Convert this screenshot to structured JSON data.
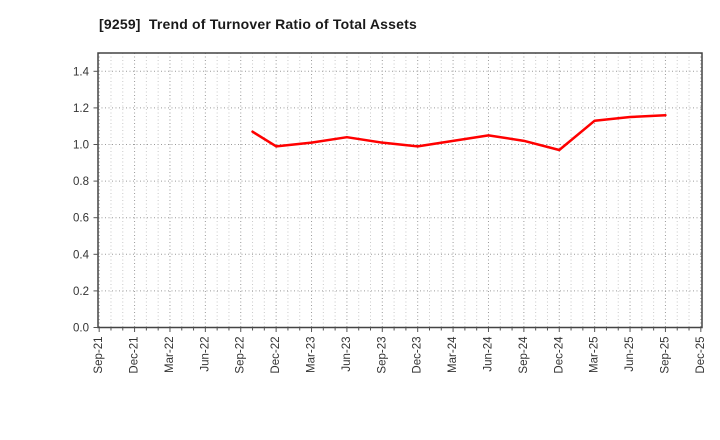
{
  "chart_data": {
    "type": "line",
    "title": "[9259]  Trend of Turnover Ratio of Total Assets",
    "xlabel": "",
    "ylabel": "",
    "ylim": [
      0,
      1.5
    ],
    "y_tick_labels": [
      "0.0",
      "0.2",
      "0.4",
      "0.6",
      "0.8",
      "1.0",
      "1.2",
      "1.4"
    ],
    "x_tick_labels": [
      "Sep-21",
      "Dec-21",
      "Mar-22",
      "Jun-22",
      "Sep-22",
      "Dec-22",
      "Mar-23",
      "Jun-23",
      "Sep-23",
      "Dec-23",
      "Mar-24",
      "Jun-24",
      "Sep-24",
      "Dec-24",
      "Mar-25",
      "Jun-25",
      "Sep-25",
      "Dec-25"
    ],
    "grid": "on",
    "legend_position": "none",
    "series": [
      {
        "name": "Turnover Ratio of Total Assets",
        "color": "#ff0000",
        "points": [
          {
            "month": "Oct-22",
            "value": 1.07
          },
          {
            "month": "Dec-22",
            "value": 0.99
          },
          {
            "month": "Mar-23",
            "value": 1.01
          },
          {
            "month": "Jun-23",
            "value": 1.04
          },
          {
            "month": "Sep-23",
            "value": 1.01
          },
          {
            "month": "Dec-23",
            "value": 0.99
          },
          {
            "month": "Mar-24",
            "value": 1.02
          },
          {
            "month": "Jun-24",
            "value": 1.05
          },
          {
            "month": "Sep-24",
            "value": 1.02
          },
          {
            "month": "Dec-24",
            "value": 0.97
          },
          {
            "month": "Mar-25",
            "value": 1.13
          },
          {
            "month": "Jun-25",
            "value": 1.15
          },
          {
            "month": "Sep-25",
            "value": 1.16
          }
        ]
      }
    ],
    "colors": {
      "line": "#ff0000",
      "grid_major": "#9a9a9a",
      "grid_minor": "#c9c9c9",
      "axis_border": "#444444",
      "tick_mark": "#555555",
      "title_text": "#1a1a1a",
      "tick_text": "#333333",
      "background": "#ffffff"
    }
  }
}
